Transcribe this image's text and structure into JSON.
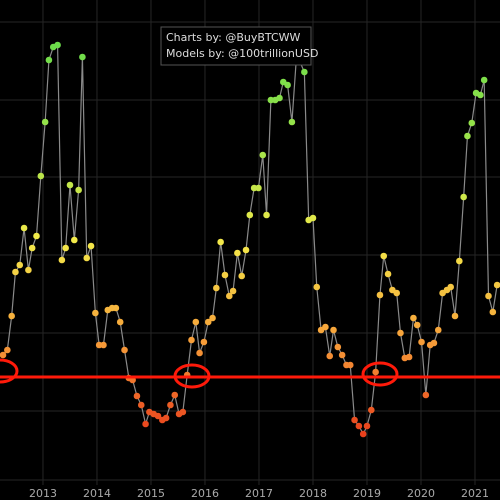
{
  "chart_data": {
    "type": "line",
    "annotations": [
      "Charts by: @BuyBTCWW",
      "Models by: @100trillionUSD"
    ],
    "x": [
      2012.26,
      2012.34,
      2012.42,
      2012.49,
      2012.57,
      2012.65,
      2012.73,
      2012.8,
      2012.88,
      2012.96,
      2013.04,
      2013.11,
      2013.19,
      2013.27,
      2013.35,
      2013.42,
      2013.5,
      2013.58,
      2013.66,
      2013.73,
      2013.81,
      2013.89,
      2013.97,
      2014.04,
      2014.12,
      2014.2,
      2014.28,
      2014.35,
      2014.43,
      2014.51,
      2014.59,
      2014.66,
      2014.74,
      2014.82,
      2014.9,
      2014.97,
      2015.05,
      2015.13,
      2015.21,
      2015.28,
      2015.36,
      2015.44,
      2015.52,
      2015.59,
      2015.67,
      2015.75,
      2015.83,
      2015.9,
      2015.98,
      2016.06,
      2016.14,
      2016.21,
      2016.29,
      2016.37,
      2016.45,
      2016.52,
      2016.6,
      2016.68,
      2016.76,
      2016.83,
      2016.91,
      2016.99,
      2017.07,
      2017.14,
      2017.22,
      2017.3,
      2017.38,
      2017.45,
      2017.53,
      2017.61,
      2017.69,
      2017.76,
      2017.84,
      2017.92,
      2018.0,
      2018.07,
      2018.15,
      2018.23,
      2018.31,
      2018.38,
      2018.46,
      2018.54,
      2018.62,
      2018.69,
      2018.77,
      2018.85,
      2018.93,
      2019.0,
      2019.08,
      2019.16,
      2019.24,
      2019.31,
      2019.39,
      2019.47,
      2019.55,
      2019.62,
      2019.7,
      2019.78,
      2019.86,
      2019.93,
      2020.01,
      2020.09,
      2020.17,
      2020.24,
      2020.32,
      2020.4,
      2020.48,
      2020.55,
      2020.63,
      2020.71,
      2020.79,
      2020.86,
      2020.94,
      2021.02,
      2021.1,
      2021.17,
      2021.25,
      2021.33,
      2021.41
    ],
    "values": [
      145,
      150,
      184,
      228,
      235,
      272,
      230,
      252,
      264,
      324,
      378,
      440,
      453,
      455,
      240,
      252,
      315,
      260,
      310,
      443,
      242,
      254,
      187,
      155,
      155,
      190,
      192,
      192,
      178,
      150,
      122,
      120,
      104,
      95,
      76,
      88,
      86,
      84,
      80,
      82,
      95,
      105,
      86,
      88,
      125,
      160,
      178,
      147,
      158,
      178,
      182,
      212,
      258,
      225,
      204,
      209,
      247,
      224,
      250,
      285,
      312,
      312,
      345,
      285,
      400,
      400,
      402,
      418,
      415,
      378,
      440,
      438,
      428,
      280,
      282,
      213,
      170,
      173,
      144,
      170,
      153,
      145,
      135,
      135,
      80,
      74,
      66,
      74,
      90,
      128,
      205,
      244,
      226,
      210,
      207,
      167,
      142,
      143,
      182,
      175,
      158,
      105,
      155,
      157,
      170,
      207,
      210,
      213,
      184,
      239,
      303,
      364,
      377,
      407,
      405,
      420,
      204,
      188,
      215
    ],
    "line_color": "#8a8a8a",
    "colorscale": [
      "#e8401c",
      "#f7a13a",
      "#f3ea4a",
      "#9ee34a",
      "#6cdc4a"
    ],
    "xlim": [
      2012.204,
      2021.463
    ],
    "ylim": [
      0,
      500
    ],
    "xticks": [
      2013,
      2014,
      2015,
      2016,
      2017,
      2018,
      2019,
      2020,
      2021
    ],
    "hline": 123,
    "hline_color": "#ff1a0a",
    "grid": true
  }
}
